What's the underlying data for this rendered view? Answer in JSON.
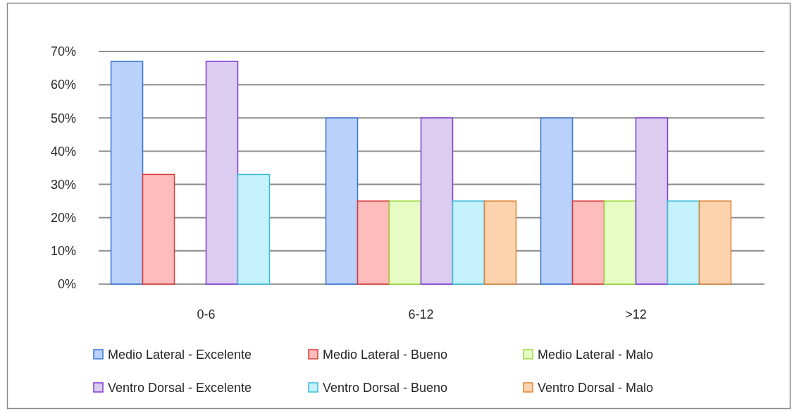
{
  "chart_data": {
    "type": "bar",
    "categories": [
      "0-6",
      "6-12",
      ">12"
    ],
    "series": [
      {
        "name": "Medio Lateral - Excelente",
        "color": "#b9d1fb",
        "values": [
          67,
          50,
          50
        ]
      },
      {
        "name": "Medio Lateral - Bueno",
        "color": "#ffbcbc",
        "values": [
          33,
          25,
          25
        ]
      },
      {
        "name": "Medio Lateral - Malo",
        "color": "#e6fcc4",
        "values": [
          0,
          25,
          25
        ]
      },
      {
        "name": "Ventro Dorsal - Excelente",
        "color": "#dccdf0",
        "values": [
          67,
          50,
          50
        ]
      },
      {
        "name": "Ventro Dorsal - Bueno",
        "color": "#c4f1fc",
        "values": [
          33,
          25,
          25
        ]
      },
      {
        "name": "Ventro Dorsal - Malo",
        "color": "#fdd3ae",
        "values": [
          0,
          25,
          25
        ]
      }
    ],
    "ylim": [
      0,
      70
    ],
    "yticks": [
      {
        "value": 0,
        "label": "0%"
      },
      {
        "value": 10,
        "label": "10%"
      },
      {
        "value": 20,
        "label": "20%"
      },
      {
        "value": 30,
        "label": "30%"
      },
      {
        "value": 40,
        "label": "40%"
      },
      {
        "value": 50,
        "label": "50%"
      },
      {
        "value": 60,
        "label": "60%"
      },
      {
        "value": 70,
        "label": "70%"
      }
    ],
    "grid": "y",
    "legend": "bottom"
  }
}
